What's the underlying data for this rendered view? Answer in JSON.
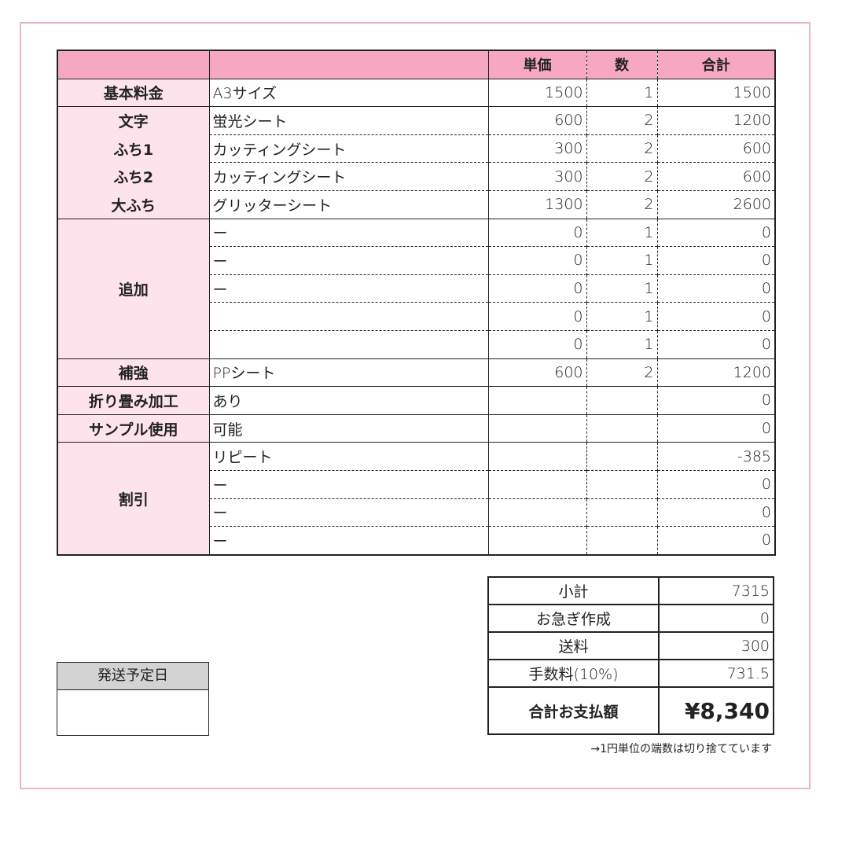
{
  "header": {
    "col1": "",
    "col2": "",
    "price": "単価",
    "qty": "数",
    "total": "合計"
  },
  "rows": [
    {
      "group": "基本料金",
      "span": 1,
      "desc": "A3サイズ",
      "price": "1500",
      "qty": "1",
      "total": "1500"
    },
    {
      "group": "文字",
      "span": 1,
      "sub": true,
      "desc": "蛍光シート",
      "price": "600",
      "qty": "2",
      "total": "1200"
    },
    {
      "group": "ふち1",
      "span": 1,
      "sub": true,
      "cont": true,
      "desc": "カッティングシート",
      "price": "300",
      "qty": "2",
      "total": "600"
    },
    {
      "group": "ふち2",
      "span": 1,
      "sub": true,
      "cont": true,
      "desc": "カッティングシート",
      "price": "300",
      "qty": "2",
      "total": "600"
    },
    {
      "group": "大ふち",
      "span": 1,
      "sub": true,
      "cont": true,
      "desc": "グリッターシート",
      "price": "1300",
      "qty": "2",
      "total": "2600"
    },
    {
      "group": "追加",
      "span": 5,
      "desc": "ー",
      "price": "0",
      "qty": "1",
      "total": "0"
    },
    {
      "desc": "ー",
      "price": "0",
      "qty": "1",
      "total": "0"
    },
    {
      "desc": "ー",
      "price": "0",
      "qty": "1",
      "total": "0"
    },
    {
      "desc": "",
      "price": "0",
      "qty": "1",
      "total": "0"
    },
    {
      "desc": "",
      "price": "0",
      "qty": "1",
      "total": "0"
    },
    {
      "group": "補強",
      "span": 1,
      "desc": "PPシート",
      "price": "600",
      "qty": "2",
      "total": "1200"
    },
    {
      "group": "折り畳み加工",
      "span": 1,
      "desc": "あり",
      "price": "",
      "qty": "",
      "total": "0"
    },
    {
      "group": "サンプル使用",
      "span": 1,
      "desc": "可能",
      "price": "",
      "qty": "",
      "total": "0"
    },
    {
      "group": "割引",
      "span": 4,
      "desc": "リピート",
      "price": "",
      "qty": "",
      "total": "-385"
    },
    {
      "desc": "ー",
      "price": "",
      "qty": "",
      "total": "0"
    },
    {
      "desc": "ー",
      "price": "",
      "qty": "",
      "total": "0"
    },
    {
      "desc": "ー",
      "price": "",
      "qty": "",
      "total": "0"
    }
  ],
  "summary": [
    {
      "label": "小計",
      "value": "7315"
    },
    {
      "label": "お急ぎ作成",
      "value": "0"
    },
    {
      "label": "送料",
      "value": "300"
    },
    {
      "label": "手数料(10%)",
      "value": "731.5"
    },
    {
      "label": "合計お支払額",
      "value": "¥8,340"
    }
  ],
  "note": "→1円単位の端数は切り捨てています",
  "shipping": {
    "label": "発送予定日",
    "value": ""
  },
  "colors": {
    "header": "#f6a8c3",
    "category": "#fde4ec",
    "frame": "#eab3c8",
    "ship_header": "#d3d3d3"
  }
}
